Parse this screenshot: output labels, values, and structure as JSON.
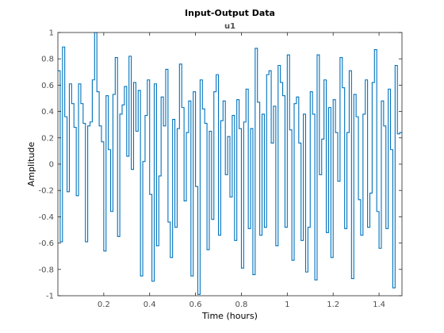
{
  "figure": {
    "title": "Input-Output Data",
    "subtitle": "u1",
    "xlabel": "Time (hours)",
    "ylabel": "Amplitude"
  },
  "chart_data": {
    "type": "line",
    "step": true,
    "title": "Input-Output Data",
    "subtitle": "u1",
    "xlabel": "Time (hours)",
    "ylabel": "Amplitude",
    "xlim": [
      0,
      1.5
    ],
    "ylim": [
      -1,
      1
    ],
    "xticks": [
      0.2,
      0.4,
      0.6,
      0.8,
      1,
      1.2,
      1.4
    ],
    "xtick_labels": [
      "0.2",
      "0.4",
      "0.6",
      "0.8",
      "1",
      "1.2",
      "1.4"
    ],
    "yticks": [
      -1,
      -0.8,
      -0.6,
      -0.4,
      -0.2,
      0,
      0.2,
      0.4,
      0.6,
      0.8,
      1
    ],
    "ytick_labels": [
      "-1",
      "-0.8",
      "-0.6",
      "-0.4",
      "-0.2",
      "0",
      "0.2",
      "0.4",
      "0.6",
      "0.8",
      "1"
    ],
    "grid": false,
    "box": true,
    "series_color": "#0072bd",
    "axes_color": "#262626",
    "tick_label_color": "#4d4d4d",
    "sample_interval": 0.01,
    "series": [
      {
        "values": [
          0.71,
          -0.59,
          0.89,
          0.36,
          -0.21,
          0.61,
          0.46,
          0.28,
          -0.24,
          0.61,
          0.46,
          0.31,
          -0.59,
          0.29,
          0.32,
          0.64,
          1.0,
          0.55,
          0.29,
          0.17,
          -0.66,
          0.52,
          0.11,
          -0.36,
          0.53,
          0.81,
          -0.55,
          0.38,
          0.45,
          0.59,
          0.06,
          0.82,
          -0.04,
          0.62,
          0.25,
          0.56,
          -0.85,
          0.02,
          0.37,
          0.64,
          -0.23,
          -0.89,
          0.61,
          -0.62,
          -0.09,
          0.51,
          0.29,
          0.72,
          -0.44,
          -0.71,
          0.34,
          -0.48,
          0.27,
          0.76,
          0.43,
          -0.28,
          0.24,
          0.48,
          -0.85,
          0.55,
          -0.17,
          -0.99,
          0.64,
          0.42,
          0.31,
          -0.65,
          0.25,
          -0.42,
          0.55,
          0.68,
          -0.54,
          0.33,
          0.48,
          -0.08,
          0.21,
          -0.25,
          0.37,
          -0.58,
          0.49,
          0.27,
          -0.79,
          0.32,
          0.57,
          -0.49,
          0.27,
          -0.84,
          0.88,
          0.47,
          -0.54,
          0.38,
          -0.48,
          0.68,
          0.71,
          0.16,
          0.44,
          -0.62,
          0.75,
          0.62,
          0.52,
          -0.48,
          0.83,
          0.26,
          -0.73,
          0.46,
          0.51,
          0.16,
          -0.58,
          0.38,
          -0.82,
          -0.48,
          0.55,
          0.38,
          -0.88,
          0.83,
          -0.08,
          0.19,
          0.64,
          -0.52,
          0.43,
          -0.71,
          0.49,
          0.24,
          -0.13,
          0.81,
          0.58,
          -0.49,
          0.24,
          0.71,
          -0.87,
          0.53,
          0.36,
          -0.27,
          -0.54,
          0.38,
          0.64,
          -0.48,
          -0.22,
          0.62,
          0.87,
          -0.36,
          -0.64,
          0.48,
          0.29,
          -0.49,
          0.57,
          0.11,
          -0.94,
          0.75,
          0.23,
          0.24
        ]
      }
    ]
  }
}
